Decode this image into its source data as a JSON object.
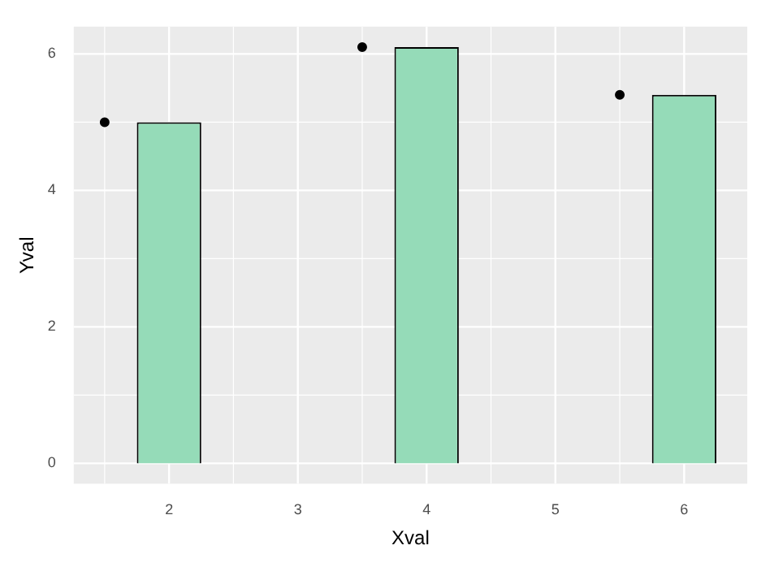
{
  "chart_data": {
    "type": "bar",
    "xlabel": "Xval",
    "ylabel": "Yval",
    "xlim": [
      1.26,
      6.49
    ],
    "ylim": [
      -0.3,
      6.4
    ],
    "xticks": [
      2,
      3,
      4,
      5,
      6
    ],
    "yticks": [
      0,
      2,
      4,
      6
    ],
    "grid": true,
    "marker": "circle",
    "series": [
      {
        "x": [
          2,
          4,
          6
        ],
        "values": [
          5,
          6.1,
          5.4
        ],
        "color": "#95dbb8"
      },
      {
        "type": "scatter",
        "x": [
          1.5,
          3.5,
          5.5
        ],
        "values": [
          5,
          6.1,
          5.4
        ],
        "color": "#000000"
      }
    ]
  }
}
